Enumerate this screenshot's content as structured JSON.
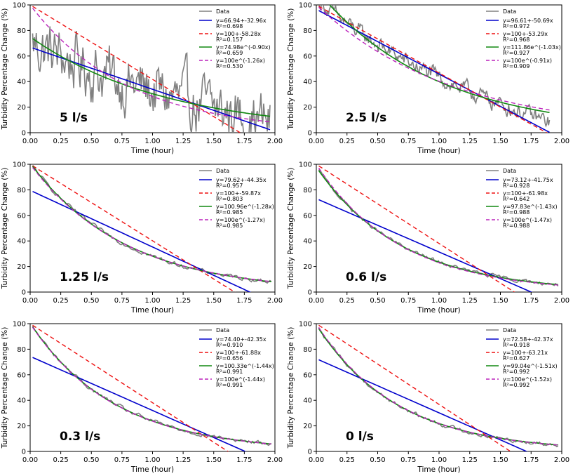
{
  "colors": {
    "data": "#808080",
    "linear_fit": "#0000cc",
    "linear_fixed": "#ee1111",
    "exp_fit": "#118811",
    "exp_fixed": "#bb22bb"
  },
  "chart_data": [
    {
      "type": "line",
      "panel_label": "5 l/s",
      "xlabel": "Time (hour)",
      "ylabel": "Turbidity Percentage Change (%)",
      "xlim": [
        0,
        2.0
      ],
      "ylim": [
        0,
        100
      ],
      "xticks": [
        "0.00",
        "0.25",
        "0.50",
        "0.75",
        "1.00",
        "1.25",
        "1.50",
        "1.75",
        "2.00"
      ],
      "yticks": [
        "0",
        "20",
        "40",
        "60",
        "80",
        "100"
      ],
      "legend_position": "top-right",
      "noise": 18,
      "data_end": 1.96,
      "series": [
        {
          "name": "Data",
          "kind": "data"
        },
        {
          "name": "y=66.94+-32.96x",
          "r2": "R²=0.698",
          "kind": "linear",
          "a": 66.94,
          "b": -32.96
        },
        {
          "name": "y=100+-58.28x",
          "r2": "R²=0.157",
          "kind": "linear_fixed",
          "a": 100,
          "b": -58.28
        },
        {
          "name": "y=74.98e^(-0.90x)",
          "r2": "R²=0.659",
          "kind": "exp",
          "a": 74.98,
          "k": -0.9
        },
        {
          "name": "y=100e^(-1.26x)",
          "r2": "R²=0.530",
          "kind": "exp_fixed",
          "a": 100,
          "k": -1.26
        }
      ]
    },
    {
      "type": "line",
      "panel_label": "2.5 l/s",
      "xlabel": "Time (hour)",
      "ylabel": "Turbidity Percentage Change (%)",
      "xlim": [
        0,
        2.0
      ],
      "ylim": [
        0,
        100
      ],
      "xticks": [
        "0.00",
        "0.25",
        "0.50",
        "0.75",
        "1.00",
        "1.25",
        "1.50",
        "1.75",
        "2.00"
      ],
      "yticks": [
        "0",
        "20",
        "40",
        "60",
        "80",
        "100"
      ],
      "legend_position": "top-right",
      "noise": 5,
      "data_end": 1.9,
      "series": [
        {
          "name": "Data",
          "kind": "data"
        },
        {
          "name": "y=96.61+-50.69x",
          "r2": "R²=0.972",
          "kind": "linear",
          "a": 96.61,
          "b": -50.69
        },
        {
          "name": "y=100+-53.29x",
          "r2": "R²=0.968",
          "kind": "linear_fixed",
          "a": 100,
          "b": -53.29
        },
        {
          "name": "y=111.86e^(-1.03x)",
          "r2": "R²=0.927",
          "kind": "exp",
          "a": 111.86,
          "k": -1.03
        },
        {
          "name": "y=100e^(-0.91x)",
          "r2": "R²=0.909",
          "kind": "exp_fixed",
          "a": 100,
          "k": -0.91
        }
      ]
    },
    {
      "type": "line",
      "panel_label": "1.25 l/s",
      "xlabel": "Time (hour)",
      "ylabel": "Turbidity Percentage Change (%)",
      "xlim": [
        0,
        2.0
      ],
      "ylim": [
        0,
        100
      ],
      "xticks": [
        "0.00",
        "0.25",
        "0.50",
        "0.75",
        "1.00",
        "1.25",
        "1.50",
        "1.75",
        "2.00"
      ],
      "yticks": [
        "0",
        "20",
        "40",
        "60",
        "80",
        "100"
      ],
      "legend_position": "top-right",
      "noise": 1.2,
      "data_end": 1.97,
      "series": [
        {
          "name": "Data",
          "kind": "data"
        },
        {
          "name": "y=79.62+-44.35x",
          "r2": "R²=0.957",
          "kind": "linear",
          "a": 79.62,
          "b": -44.35
        },
        {
          "name": "y=100+-59.87x",
          "r2": "R²=0.803",
          "kind": "linear_fixed",
          "a": 100,
          "b": -59.87
        },
        {
          "name": "y=100.96e^(-1.28x)",
          "r2": "R²=0.985",
          "kind": "exp",
          "a": 100.96,
          "k": -1.28
        },
        {
          "name": "y=100e^(-1.27x)",
          "r2": "R²=0.985",
          "kind": "exp_fixed",
          "a": 100,
          "k": -1.27
        }
      ]
    },
    {
      "type": "line",
      "panel_label": "0.6 l/s",
      "xlabel": "Time (hour)",
      "ylabel": "Turbidity Percentage Change (%)",
      "xlim": [
        0,
        2.0
      ],
      "ylim": [
        0,
        100
      ],
      "xticks": [
        "0.00",
        "0.25",
        "0.50",
        "0.75",
        "1.00",
        "1.25",
        "1.50",
        "1.75",
        "2.00"
      ],
      "yticks": [
        "0",
        "20",
        "40",
        "60",
        "80",
        "100"
      ],
      "legend_position": "top-right",
      "noise": 1.2,
      "data_end": 1.97,
      "series": [
        {
          "name": "Data",
          "kind": "data"
        },
        {
          "name": "y=73.12+-41.75x",
          "r2": "R²=0.928",
          "kind": "linear",
          "a": 73.12,
          "b": -41.75
        },
        {
          "name": "y=100+-61.98x",
          "r2": "R²=0.642",
          "kind": "linear_fixed",
          "a": 100,
          "b": -61.98
        },
        {
          "name": "y=97.83e^(-1.43x)",
          "r2": "R²=0.988",
          "kind": "exp",
          "a": 97.83,
          "k": -1.43
        },
        {
          "name": "y=100e^(-1.47x)",
          "r2": "R²=0.988",
          "kind": "exp_fixed",
          "a": 100,
          "k": -1.47
        }
      ]
    },
    {
      "type": "line",
      "panel_label": "0.3 l/s",
      "xlabel": "Time (hour)",
      "ylabel": "Turbidity Percentage Change (%)",
      "xlim": [
        0,
        2.0
      ],
      "ylim": [
        0,
        100
      ],
      "xticks": [
        "0.00",
        "0.25",
        "0.50",
        "0.75",
        "1.00",
        "1.25",
        "1.50",
        "1.75",
        "2.00"
      ],
      "yticks": [
        "0",
        "20",
        "40",
        "60",
        "80",
        "100"
      ],
      "legend_position": "top-right",
      "noise": 1.2,
      "data_end": 1.97,
      "series": [
        {
          "name": "Data",
          "kind": "data"
        },
        {
          "name": "y=74.40+-42.35x",
          "r2": "R²=0.910",
          "kind": "linear",
          "a": 74.4,
          "b": -42.35
        },
        {
          "name": "y=100+-61.88x",
          "r2": "R²=0.656",
          "kind": "linear_fixed",
          "a": 100,
          "b": -61.88
        },
        {
          "name": "y=100.33e^(-1.44x)",
          "r2": "R²=0.991",
          "kind": "exp",
          "a": 100.33,
          "k": -1.44
        },
        {
          "name": "y=100e^(-1.44x)",
          "r2": "R²=0.991",
          "kind": "exp_fixed",
          "a": 100,
          "k": -1.44
        }
      ]
    },
    {
      "type": "line",
      "panel_label": "0 l/s",
      "xlabel": "Time (hour)",
      "ylabel": "Turbidity Percentage Change (%)",
      "xlim": [
        0,
        2.0
      ],
      "ylim": [
        0,
        100
      ],
      "xticks": [
        "0.00",
        "0.25",
        "0.50",
        "0.75",
        "1.00",
        "1.25",
        "1.50",
        "1.75",
        "2.00"
      ],
      "yticks": [
        "0",
        "20",
        "40",
        "60",
        "80",
        "100"
      ],
      "legend_position": "top-right",
      "noise": 1.2,
      "data_end": 1.97,
      "series": [
        {
          "name": "Data",
          "kind": "data"
        },
        {
          "name": "y=72.58+-42.37x",
          "r2": "R²=0.918",
          "kind": "linear",
          "a": 72.58,
          "b": -42.37
        },
        {
          "name": "y=100+-63.21x",
          "r2": "R²=0.627",
          "kind": "linear_fixed",
          "a": 100,
          "b": -63.21
        },
        {
          "name": "y=99.04e^(-1.51x)",
          "r2": "R²=0.992",
          "kind": "exp",
          "a": 99.04,
          "k": -1.51
        },
        {
          "name": "y=100e^(-1.52x)",
          "r2": "R²=0.992",
          "kind": "exp_fixed",
          "a": 100,
          "k": -1.52
        }
      ]
    }
  ]
}
